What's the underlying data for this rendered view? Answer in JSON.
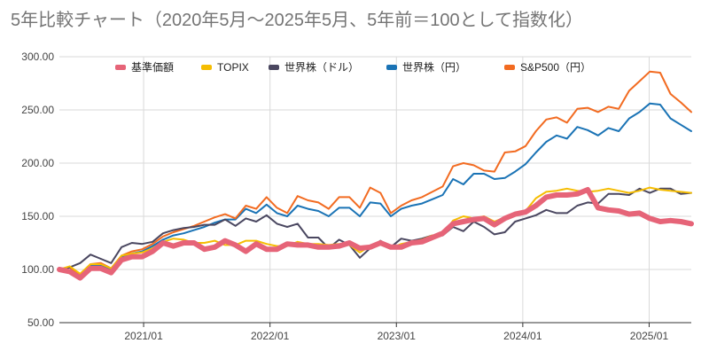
{
  "title": "5年比較チャート（2020年5月〜2025年5月、5年前＝100として指数化）",
  "chart_data": {
    "type": "line",
    "title": "5年比較チャート（2020年5月〜2025年5月、5年前＝100として指数化）",
    "xlabel": "",
    "ylabel": "",
    "ylim": [
      50,
      300
    ],
    "yticks": [
      "50.00",
      "100.00",
      "150.00",
      "200.00",
      "250.00",
      "300.00"
    ],
    "xticks": [
      {
        "label": "2021/01",
        "x": 8
      },
      {
        "label": "2022/01",
        "x": 20
      },
      {
        "label": "2023/01",
        "x": 32
      },
      {
        "label": "2024/01",
        "x": 44
      },
      {
        "label": "2025/01",
        "x": 56
      }
    ],
    "xlim": [
      0,
      60
    ],
    "grid": true,
    "legend_position": "top",
    "series": [
      {
        "name": "世界株（円）",
        "color": "#1a73b5",
        "width": 2,
        "values": [
          100,
          102,
          94,
          104,
          104,
          100,
          112,
          115,
          117,
          122,
          128,
          132,
          134,
          137,
          140,
          144,
          147,
          147,
          157,
          153,
          161,
          153,
          150,
          160,
          157,
          155,
          150,
          158,
          158,
          150,
          163,
          162,
          150,
          157,
          160,
          162,
          166,
          170,
          185,
          180,
          190,
          190,
          185,
          186,
          192,
          199,
          210,
          220,
          226,
          223,
          234,
          231,
          226,
          233,
          230,
          242,
          248,
          256,
          255,
          242,
          236,
          230
        ]
      },
      {
        "name": "S&P500（円）",
        "color": "#f26b21",
        "width": 2,
        "values": [
          100,
          102,
          95,
          105,
          106,
          101,
          113,
          117,
          119,
          124,
          131,
          135,
          138,
          141,
          145,
          149,
          152,
          148,
          160,
          157,
          168,
          158,
          153,
          169,
          165,
          163,
          157,
          168,
          168,
          158,
          177,
          172,
          153,
          160,
          165,
          168,
          173,
          178,
          197,
          200,
          198,
          193,
          192,
          210,
          211,
          216,
          230,
          241,
          243,
          238,
          251,
          252,
          248,
          253,
          251,
          268,
          277,
          286,
          285,
          265,
          257,
          248
        ]
      },
      {
        "name": "世界株（ドル）",
        "color": "#4a4760",
        "width": 2,
        "values": [
          100,
          102,
          106,
          114,
          110,
          106,
          121,
          125,
          124,
          126,
          134,
          137,
          139,
          140,
          142,
          142,
          147,
          141,
          148,
          145,
          151,
          143,
          140,
          143,
          130,
          130,
          120,
          128,
          123,
          111,
          120,
          127,
          121,
          129,
          127,
          129,
          132,
          132,
          140,
          136,
          145,
          140,
          133,
          135,
          145,
          148,
          151,
          156,
          153,
          153,
          160,
          163,
          162,
          171,
          171,
          170,
          176,
          172,
          176,
          176,
          171,
          172
        ]
      },
      {
        "name": "TOPIX",
        "color": "#f5bd02",
        "width": 2,
        "values": [
          100,
          103,
          96,
          105,
          105,
          101,
          113,
          115,
          116,
          120,
          126,
          129,
          128,
          125,
          125,
          127,
          123,
          123,
          127,
          127,
          124,
          122,
          122,
          126,
          124,
          124,
          123,
          124,
          123,
          116,
          122,
          126,
          120,
          124,
          126,
          128,
          132,
          133,
          146,
          150,
          148,
          150,
          145,
          149,
          151,
          155,
          167,
          173,
          174,
          176,
          174,
          173,
          174,
          176,
          174,
          172,
          174,
          177,
          175,
          174,
          173,
          172
        ]
      },
      {
        "name": "基準価額",
        "color": "#e66478",
        "width": 6,
        "values": [
          100,
          98,
          92,
          101,
          101,
          97,
          109,
          112,
          112,
          117,
          125,
          122,
          125,
          125,
          119,
          121,
          127,
          123,
          117,
          124,
          119,
          119,
          124,
          123,
          123,
          121,
          121,
          122,
          125,
          120,
          121,
          125,
          121,
          121,
          125,
          126,
          130,
          134,
          143,
          145,
          147,
          148,
          142,
          148,
          152,
          154,
          160,
          168,
          170,
          170,
          171,
          175,
          158,
          156,
          155,
          152,
          153,
          148,
          145,
          146,
          145,
          143
        ]
      }
    ],
    "legend_order": [
      "基準価額",
      "TOPIX",
      "世界株（ドル）",
      "世界株（円）",
      "S&P500（円）"
    ]
  }
}
